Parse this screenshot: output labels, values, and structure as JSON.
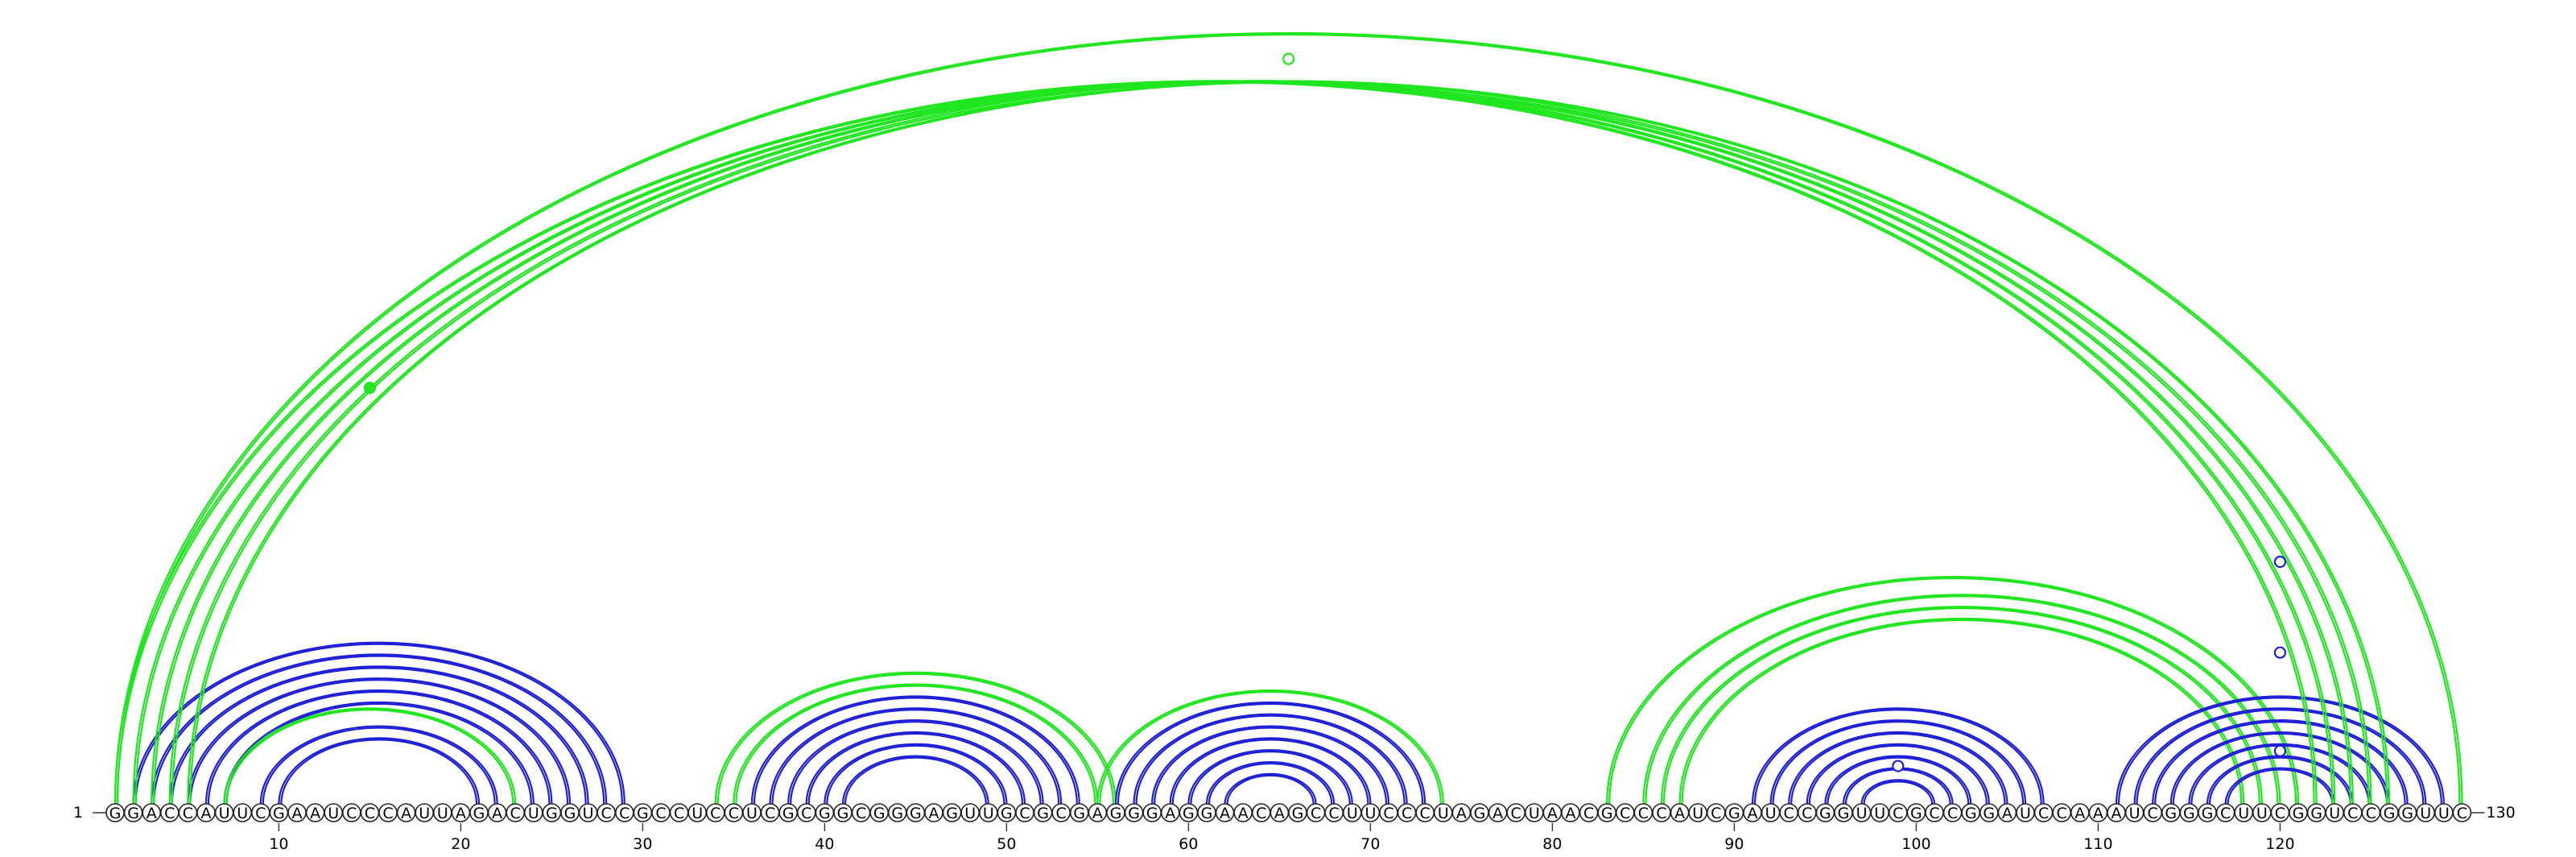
{
  "sequence": "GGACCAUUCGAAUCCCAUUAGACUGGUCCGCCUCCUCGCGGCGGGAGUUGCGCGAGGGAGGAACAGCCUUCCCUAGACUAACGCCCAUCGAUCCGGUUCGCCGGAUCCAAAUCGGGCUUCGGUCCGGUUC",
  "start_label": "1",
  "end_label": "130",
  "ticks": [
    10,
    20,
    30,
    40,
    50,
    60,
    70,
    80,
    90,
    100,
    110,
    120
  ],
  "colors": {
    "blue": "#1f1fd6",
    "green": "#1fe61f"
  },
  "arcs": [
    {
      "color": "blue",
      "pairs": [
        [
          2,
          29
        ],
        [
          3,
          28
        ],
        [
          4,
          27
        ],
        [
          5,
          26
        ],
        [
          6,
          25
        ],
        [
          7,
          24
        ],
        [
          9,
          22
        ],
        [
          10,
          21
        ]
      ]
    },
    {
      "color": "green",
      "pairs": [
        [
          7,
          23
        ]
      ]
    },
    {
      "color": "green",
      "pairs": [
        [
          34,
          56
        ],
        [
          35,
          55
        ]
      ]
    },
    {
      "color": "blue",
      "pairs": [
        [
          36,
          54
        ],
        [
          37,
          53
        ],
        [
          38,
          52
        ],
        [
          39,
          51
        ],
        [
          40,
          50
        ],
        [
          41,
          49
        ]
      ]
    },
    {
      "color": "green",
      "pairs": [
        [
          55,
          74
        ]
      ]
    },
    {
      "color": "blue",
      "pairs": [
        [
          56,
          73
        ],
        [
          57,
          72
        ],
        [
          58,
          71
        ],
        [
          59,
          70
        ],
        [
          60,
          69
        ],
        [
          61,
          68
        ],
        [
          62,
          67
        ]
      ]
    },
    {
      "color": "green",
      "pairs": [
        [
          83,
          121
        ],
        [
          85,
          120
        ],
        [
          86,
          119
        ],
        [
          87,
          118
        ]
      ]
    },
    {
      "color": "blue",
      "pairs": [
        [
          91,
          107
        ],
        [
          92,
          106
        ],
        [
          93,
          105
        ],
        [
          94,
          104
        ],
        [
          95,
          103
        ],
        [
          96,
          102
        ],
        [
          97,
          101
        ]
      ]
    },
    {
      "color": "blue",
      "pairs": [
        [
          111,
          129
        ],
        [
          112,
          128
        ],
        [
          113,
          127
        ],
        [
          114,
          126
        ],
        [
          115,
          125
        ],
        [
          116,
          124
        ],
        [
          117,
          123
        ]
      ]
    },
    {
      "color": "green",
      "pairs": [
        [
          1,
          122
        ],
        [
          2,
          123
        ],
        [
          3,
          124
        ],
        [
          4,
          125
        ],
        [
          5,
          126
        ],
        [
          1,
          130
        ]
      ]
    }
  ],
  "markers": [
    {
      "pos": 15,
      "height": 0.55,
      "color": "green",
      "filled": true
    },
    {
      "pos": 65.5,
      "height": 0.985,
      "color": "green",
      "filled": false
    },
    {
      "pos": 99,
      "height": 0.05,
      "color": "blue",
      "filled": false
    },
    {
      "pos": 120,
      "height": 0.32,
      "color": "blue",
      "filled": false
    },
    {
      "pos": 120,
      "height": 0.2,
      "color": "blue",
      "filled": false
    },
    {
      "pos": 120,
      "height": 0.07,
      "color": "blue",
      "filled": false
    }
  ]
}
